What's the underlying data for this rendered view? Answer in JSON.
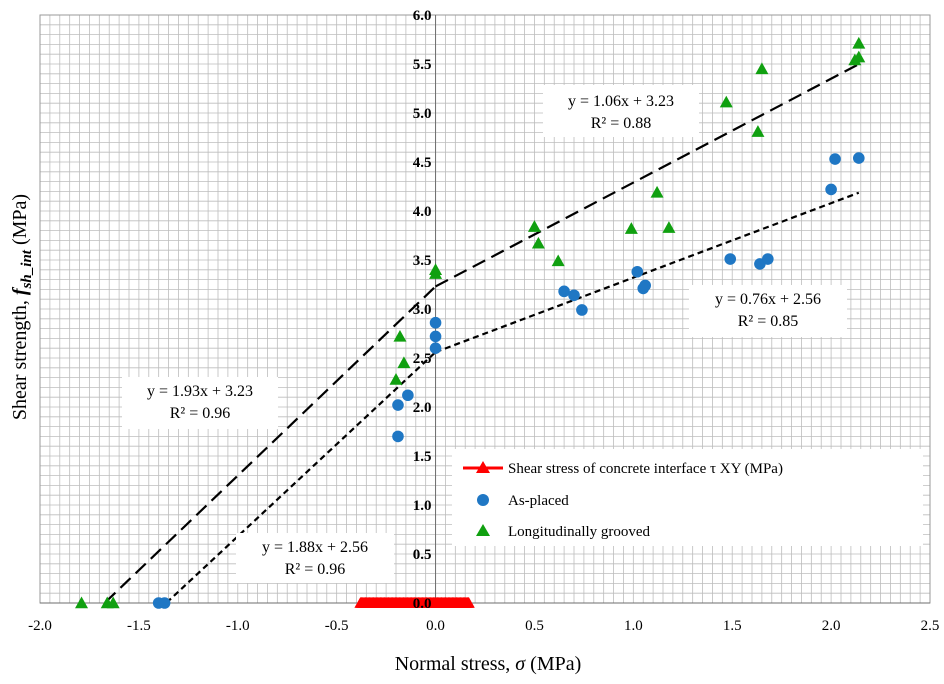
{
  "chart_data": {
    "type": "scatter",
    "xlabel": "Normal stress, σ (MPa)",
    "ylabel": "Shear strength, f_sh_int (MPa)",
    "xlim": [
      -2.0,
      2.5
    ],
    "ylim": [
      0.0,
      6.0
    ],
    "x_ticks": [
      "-2.0",
      "-1.5",
      "-1.0",
      "-0.5",
      "0.0",
      "0.5",
      "1.0",
      "1.5",
      "2.0",
      "2.5"
    ],
    "y_ticks": [
      "0.0",
      "0.5",
      "1.0",
      "1.5",
      "2.0",
      "2.5",
      "3.0",
      "3.5",
      "4.0",
      "4.5",
      "5.0",
      "5.5",
      "6.0"
    ],
    "grid": true,
    "legend_position": "lower-right",
    "legend": [
      "Shear stress of concrete interface τ XY (MPa)",
      "As-placed",
      "Longitudinally grooved"
    ],
    "series": [
      {
        "name": "Shear stress of concrete interface τ XY (MPa)",
        "marker": "triangle",
        "color": "#ff0000",
        "x_range": [
          -0.38,
          0.17
        ],
        "y_values": [
          0.0,
          0.1
        ]
      },
      {
        "name": "As-placed",
        "marker": "circle",
        "color": "#1f77c4",
        "points": [
          [
            -1.4,
            0.0
          ],
          [
            -1.37,
            0.0
          ],
          [
            -0.19,
            1.7
          ],
          [
            -0.19,
            2.02
          ],
          [
            -0.14,
            2.12
          ],
          [
            0.0,
            2.6
          ],
          [
            0.0,
            2.72
          ],
          [
            0.0,
            2.86
          ],
          [
            0.65,
            3.18
          ],
          [
            0.7,
            3.14
          ],
          [
            0.74,
            2.99
          ],
          [
            1.02,
            3.38
          ],
          [
            1.05,
            3.21
          ],
          [
            1.06,
            3.24
          ],
          [
            1.49,
            3.51
          ],
          [
            1.64,
            3.46
          ],
          [
            1.68,
            3.51
          ],
          [
            2.0,
            4.22
          ],
          [
            2.02,
            4.53
          ],
          [
            2.14,
            4.54
          ]
        ]
      },
      {
        "name": "Longitudinally grooved",
        "marker": "triangle",
        "color": "#10a010",
        "points": [
          [
            -1.79,
            0.0
          ],
          [
            -1.66,
            0.0
          ],
          [
            -1.63,
            0.0
          ],
          [
            -0.2,
            2.28
          ],
          [
            -0.16,
            2.45
          ],
          [
            -0.18,
            2.72
          ],
          [
            0.0,
            3.36
          ],
          [
            0.0,
            3.4
          ],
          [
            0.5,
            3.84
          ],
          [
            0.52,
            3.67
          ],
          [
            0.62,
            3.49
          ],
          [
            0.99,
            3.82
          ],
          [
            1.12,
            4.19
          ],
          [
            1.18,
            3.83
          ],
          [
            1.47,
            5.11
          ],
          [
            1.63,
            4.81
          ],
          [
            1.65,
            5.45
          ],
          [
            2.12,
            5.54
          ],
          [
            2.14,
            5.71
          ],
          [
            2.14,
            5.57
          ]
        ]
      }
    ],
    "trendlines": [
      {
        "style": "long-dash",
        "x_from": -1.67,
        "x_to": 0.0,
        "slope": 1.93,
        "intercept": 3.23
      },
      {
        "style": "long-dash",
        "x_from": 0.0,
        "x_to": 2.14,
        "slope": 1.06,
        "intercept": 3.23
      },
      {
        "style": "short-dash",
        "x_from": -1.36,
        "x_to": 0.0,
        "slope": 1.88,
        "intercept": 2.56
      },
      {
        "style": "short-dash",
        "x_from": 0.0,
        "x_to": 2.14,
        "slope": 0.76,
        "intercept": 2.56
      }
    ],
    "annotations": [
      {
        "line1": "y = 1.06x + 3.23",
        "line2": "R² = 0.88"
      },
      {
        "line1": "y = 0.76x + 2.56",
        "line2": "R² = 0.85"
      },
      {
        "line1": "y = 1.93x + 3.23",
        "line2": "R² = 0.96"
      },
      {
        "line1": "y = 1.88x + 2.56",
        "line2": "R² = 0.96"
      }
    ]
  }
}
